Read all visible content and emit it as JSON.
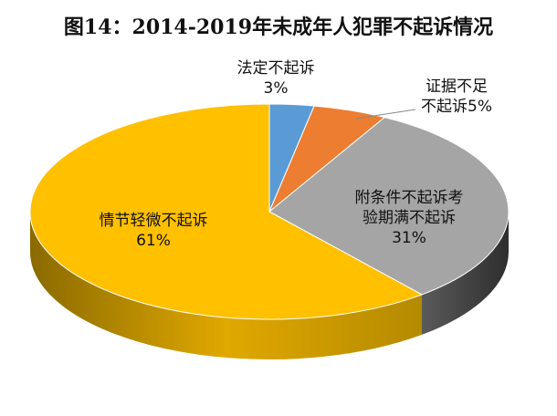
{
  "chart_data": {
    "type": "pie",
    "title": "图14：2014-2019年未成年人犯罪不起诉情况",
    "slices": [
      {
        "name": "法定不起诉",
        "value": 3,
        "value_label": "3%",
        "label_lines": [
          "法定不起诉",
          "3%"
        ],
        "color": "#5b9bd5",
        "side_color": "#3b6f9e"
      },
      {
        "name": "证据不足不起诉",
        "value": 5,
        "value_label": "5%",
        "label_lines": [
          "证据不足",
          "不起诉5%"
        ],
        "color": "#ed7d31",
        "side_color": "#b05a1f"
      },
      {
        "name": "附条件不起诉考验期满不起诉",
        "value": 31,
        "value_label": "31%",
        "label_lines": [
          "附条件不起诉考",
          "验期满不起诉",
          "31%"
        ],
        "color": "#a5a5a5",
        "side_color": "#444444"
      },
      {
        "name": "情节轻微不起诉",
        "value": 61,
        "value_label": "61%",
        "label_lines": [
          "情节轻微不起诉",
          "61%"
        ],
        "color": "#ffc000",
        "side_color": "#a07800"
      }
    ]
  }
}
